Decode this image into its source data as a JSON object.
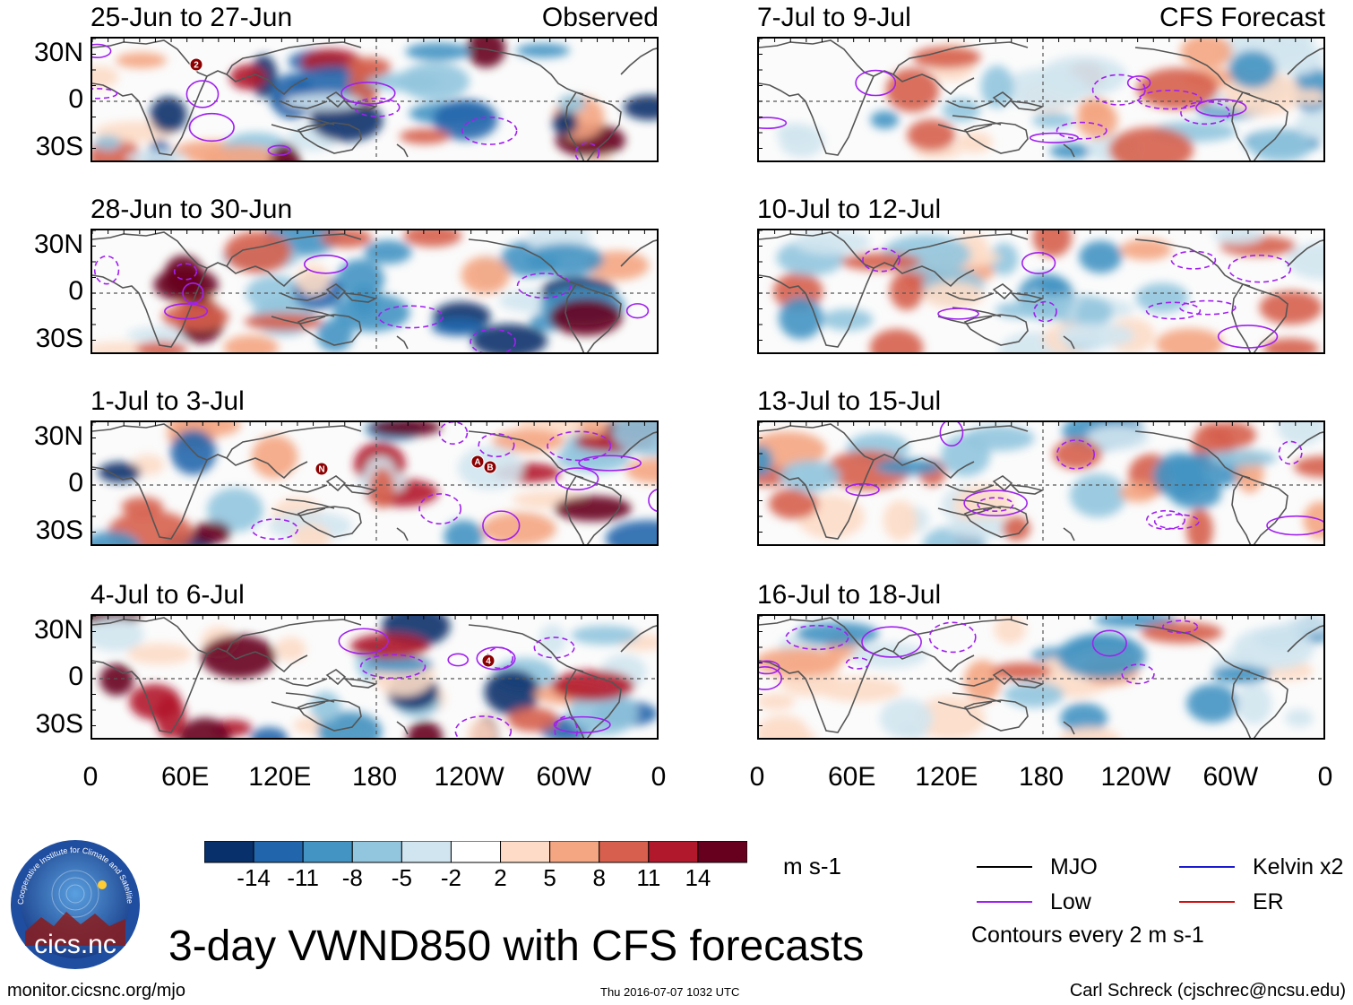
{
  "chart_data": {
    "type": "heatmap",
    "title": "3-day VWND850 with CFS forecasts",
    "variable": "VWND850",
    "units": "m s-1",
    "x_ticks": [
      "0",
      "60E",
      "120E",
      "180",
      "120W",
      "60W",
      "0"
    ],
    "y_ticks": [
      "30N",
      "0",
      "30S"
    ],
    "y_range": [
      "40S",
      "40N"
    ],
    "x_range": [
      "0",
      "360E"
    ],
    "colorbar": {
      "levels": [
        -14,
        -11,
        -8,
        -5,
        -2,
        2,
        5,
        8,
        11,
        14
      ],
      "colors": [
        "#08306b",
        "#2166ac",
        "#4393c3",
        "#92c5de",
        "#d1e5f0",
        "#ffffff",
        "#fddbc7",
        "#f4a582",
        "#d6604d",
        "#b2182b",
        "#67001f"
      ]
    },
    "panels": [
      {
        "id": "obs-1",
        "period": "25-Jun to 27-Jun",
        "source": "Observed",
        "tag": "Observed",
        "storm_markers": [
          "2"
        ]
      },
      {
        "id": "obs-2",
        "period": "28-Jun to 30-Jun",
        "source": "Observed",
        "tag": "",
        "storm_markers": []
      },
      {
        "id": "obs-3",
        "period": "1-Jul to 3-Jul",
        "source": "Observed",
        "tag": "",
        "storm_markers": [
          "N",
          "A",
          "B"
        ]
      },
      {
        "id": "obs-4",
        "period": "4-Jul to 6-Jul",
        "source": "Observed",
        "tag": "",
        "storm_markers": [
          "4"
        ]
      },
      {
        "id": "fc-1",
        "period": "7-Jul to 9-Jul",
        "source": "CFS Forecast",
        "tag": "CFS Forecast",
        "storm_markers": []
      },
      {
        "id": "fc-2",
        "period": "10-Jul to 12-Jul",
        "source": "CFS Forecast",
        "tag": "",
        "storm_markers": []
      },
      {
        "id": "fc-3",
        "period": "13-Jul to 15-Jul",
        "source": "CFS Forecast",
        "tag": "",
        "storm_markers": []
      },
      {
        "id": "fc-4",
        "period": "16-Jul to 18-Jul",
        "source": "CFS Forecast",
        "tag": "",
        "storm_markers": []
      }
    ],
    "contour_legend": [
      {
        "label": "MJO",
        "color": "#000000"
      },
      {
        "label": "Kelvin x2",
        "color": "#1a1ad0"
      },
      {
        "label": "Low",
        "color": "#a020f0"
      },
      {
        "label": "ER",
        "color": "#d01010"
      }
    ],
    "contour_note": "Contours every 2 m s-1"
  },
  "header": {
    "observed_label": "Observed",
    "forecast_label": "CFS Forecast"
  },
  "footer": {
    "website": "monitor.cicsnc.org/mjo",
    "timestamp": "Thu 2016-07-07 1032 UTC",
    "author": "Carl Schreck (cjschrec@ncsu.edu)"
  },
  "logo": {
    "text": "cics.nc",
    "ring_text": "Cooperative Institute for Climate and Satellites"
  },
  "colors": {
    "coast": "#555555",
    "low_contour": "#a020f0",
    "ocean_bg": "#fbfbfb"
  }
}
